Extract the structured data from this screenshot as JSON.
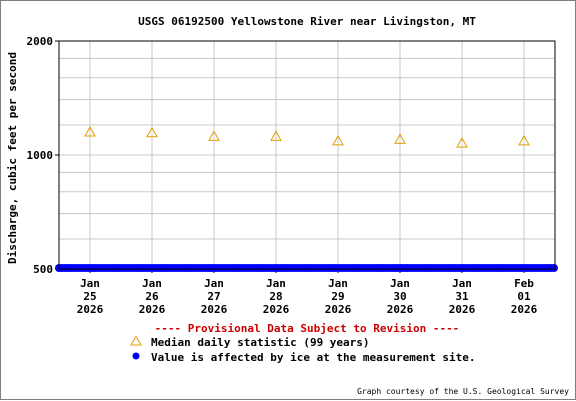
{
  "chart_data": {
    "type": "scatter",
    "title": "USGS 06192500 Yellowstone River near Livingston, MT",
    "ylabel": "Discharge, cubic feet per second",
    "ylim": [
      500,
      2000
    ],
    "y_scale": "log",
    "y_ticks": [
      500,
      1000,
      2000
    ],
    "y_tick_labels": [
      "500",
      "1000",
      "2000"
    ],
    "grid": true,
    "xlim": [
      "2026-01-24T12:00",
      "2026-02-01T12:00"
    ],
    "x_ticks": [
      {
        "date": "2026-01-25",
        "lines": [
          "Jan",
          "25",
          "2026"
        ]
      },
      {
        "date": "2026-01-26",
        "lines": [
          "Jan",
          "26",
          "2026"
        ]
      },
      {
        "date": "2026-01-27",
        "lines": [
          "Jan",
          "27",
          "2026"
        ]
      },
      {
        "date": "2026-01-28",
        "lines": [
          "Jan",
          "28",
          "2026"
        ]
      },
      {
        "date": "2026-01-29",
        "lines": [
          "Jan",
          "29",
          "2026"
        ]
      },
      {
        "date": "2026-01-30",
        "lines": [
          "Jan",
          "30",
          "2026"
        ]
      },
      {
        "date": "2026-01-31",
        "lines": [
          "Jan",
          "31",
          "2026"
        ]
      },
      {
        "date": "2026-02-01",
        "lines": [
          "Feb",
          "01",
          "2026"
        ]
      }
    ],
    "series": [
      {
        "name": "Median daily statistic (99 years)",
        "marker": "triangle-open",
        "color": "#e0a000",
        "points": [
          {
            "x": "2026-01-25",
            "y": 1150
          },
          {
            "x": "2026-01-26",
            "y": 1145
          },
          {
            "x": "2026-01-27",
            "y": 1120
          },
          {
            "x": "2026-01-28",
            "y": 1120
          },
          {
            "x": "2026-01-29",
            "y": 1090
          },
          {
            "x": "2026-01-30",
            "y": 1100
          },
          {
            "x": "2026-01-31",
            "y": 1075
          },
          {
            "x": "2026-02-01",
            "y": 1090
          }
        ]
      },
      {
        "name": "Value is affected by ice at the measurement site.",
        "marker": "dot",
        "color": "#0000ff",
        "x_start": "2026-01-24T12:00",
        "x_end": "2026-02-01T12:00",
        "y": 500
      }
    ],
    "provisional_note": "---- Provisional Data Subject to Revision ----",
    "provisional_color": "#cc0000",
    "credit": "Graph courtesy of the U.S. Geological Survey"
  }
}
